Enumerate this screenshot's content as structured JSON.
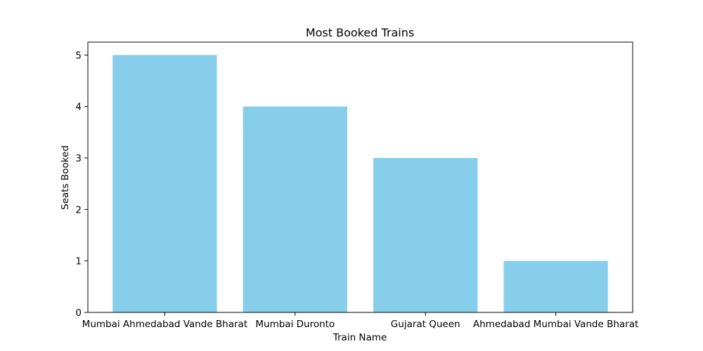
{
  "chart_data": {
    "type": "bar",
    "title": "Most Booked Trains",
    "xlabel": "Train Name",
    "ylabel": "Seats Booked",
    "categories": [
      "Mumbai Ahmedabad Vande Bharat",
      "Mumbai Duronto",
      "Gujarat Queen",
      "Ahmedabad Mumbai Vande Bharat"
    ],
    "values": [
      5,
      4,
      3,
      1
    ],
    "ylim": [
      0,
      5.25
    ],
    "yticks": [
      0,
      1,
      2,
      3,
      4,
      5
    ],
    "bar_color": "#87ceeb",
    "grid": false,
    "legend": "none"
  }
}
